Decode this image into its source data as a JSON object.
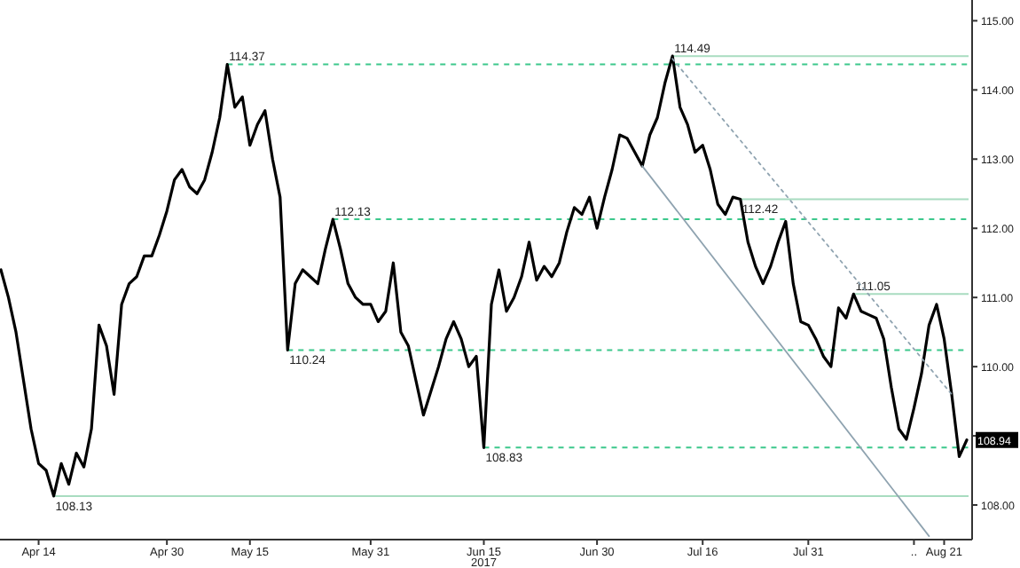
{
  "chart_data": {
    "type": "line",
    "categories": [
      null,
      null,
      null,
      null,
      null,
      "Apr 14",
      null,
      null,
      null,
      null,
      null,
      null,
      null,
      null,
      null,
      null,
      null,
      null,
      null,
      null,
      null,
      null,
      "Apr 30",
      null,
      null,
      null,
      null,
      null,
      null,
      null,
      null,
      null,
      null,
      "May 15",
      null,
      null,
      null,
      null,
      null,
      null,
      null,
      null,
      null,
      null,
      null,
      null,
      null,
      null,
      null,
      "May 31",
      null,
      null,
      null,
      null,
      null,
      null,
      null,
      null,
      null,
      null,
      null,
      null,
      null,
      null,
      "Jun 15",
      null,
      null,
      null,
      null,
      null,
      null,
      null,
      null,
      null,
      null,
      null,
      null,
      null,
      null,
      "Jun 30",
      null,
      null,
      null,
      null,
      null,
      null,
      null,
      null,
      null,
      null,
      null,
      null,
      null,
      "Jul 16",
      null,
      null,
      null,
      null,
      null,
      null,
      null,
      null,
      null,
      null,
      null,
      null,
      null,
      "Jul 31",
      null,
      null,
      null,
      null,
      null,
      null,
      null,
      null,
      null,
      null,
      null,
      null,
      null,
      "..",
      null,
      null,
      null,
      "Aug 21",
      null,
      null,
      null
    ],
    "series": [
      {
        "color": "#000000",
        "line_style": "solid",
        "values": [
          111.4,
          111.0,
          110.5,
          109.8,
          109.1,
          108.6,
          108.5,
          108.13,
          108.6,
          108.3,
          108.75,
          108.55,
          109.1,
          110.6,
          110.3,
          109.6,
          110.9,
          111.2,
          111.3,
          111.6,
          111.6,
          111.9,
          112.25,
          112.7,
          112.85,
          112.6,
          112.5,
          112.7,
          113.1,
          113.6,
          114.37,
          113.75,
          113.9,
          113.2,
          113.5,
          113.7,
          113.0,
          112.45,
          110.24,
          111.2,
          111.4,
          111.3,
          111.2,
          111.7,
          112.13,
          111.7,
          111.2,
          111.0,
          110.9,
          110.9,
          110.65,
          110.8,
          111.5,
          110.5,
          110.3,
          109.8,
          109.3,
          109.65,
          110.0,
          110.4,
          110.65,
          110.4,
          110.0,
          110.15,
          108.83,
          110.9,
          111.4,
          110.8,
          111.0,
          111.3,
          111.8,
          111.25,
          111.45,
          111.3,
          111.5,
          111.95,
          112.3,
          112.2,
          112.45,
          112.0,
          112.45,
          112.85,
          113.35,
          113.3,
          113.1,
          112.9,
          113.35,
          113.6,
          114.1,
          114.49,
          113.75,
          113.5,
          113.1,
          113.2,
          112.85,
          112.35,
          112.2,
          112.45,
          112.42,
          111.8,
          111.45,
          111.2,
          111.45,
          111.8,
          112.1,
          111.2,
          110.65,
          110.6,
          110.4,
          110.15,
          110.0,
          110.85,
          110.7,
          111.05,
          110.8,
          110.75,
          110.7,
          110.4,
          109.7,
          109.1,
          108.95,
          109.4,
          109.9,
          110.6,
          110.9,
          110.4,
          109.6,
          108.7,
          108.94
        ]
      },
      {
        "color": "#8fa3b0",
        "line_style": "solid",
        "values": [
          null,
          null,
          null,
          null,
          null,
          null,
          null,
          null,
          null,
          null,
          null,
          null,
          null,
          null,
          null,
          null,
          null,
          null,
          null,
          null,
          null,
          null,
          null,
          null,
          null,
          null,
          null,
          null,
          null,
          null,
          null,
          null,
          null,
          null,
          null,
          null,
          null,
          null,
          null,
          null,
          null,
          null,
          null,
          null,
          null,
          null,
          null,
          null,
          null,
          null,
          null,
          null,
          null,
          null,
          null,
          null,
          null,
          null,
          null,
          null,
          null,
          null,
          null,
          null,
          null,
          null,
          null,
          null,
          null,
          null,
          null,
          null,
          null,
          null,
          null,
          null,
          null,
          null,
          null,
          null,
          null,
          null,
          null,
          null,
          null,
          112.9,
          null,
          null,
          null,
          null,
          null,
          null,
          null,
          null,
          null,
          null,
          null,
          null,
          null,
          null,
          null,
          null,
          null,
          null,
          null,
          null,
          null,
          null,
          null,
          null,
          null,
          null,
          null,
          null,
          null,
          null,
          null,
          null,
          null,
          null,
          null,
          null,
          null,
          107.55,
          null,
          null,
          null,
          null,
          null
        ]
      },
      {
        "color": "#8fa3b0",
        "line_style": "dotted",
        "values": [
          null,
          null,
          null,
          null,
          null,
          null,
          null,
          null,
          null,
          null,
          null,
          null,
          null,
          null,
          null,
          null,
          null,
          null,
          null,
          null,
          null,
          null,
          null,
          null,
          null,
          null,
          null,
          null,
          null,
          null,
          null,
          null,
          null,
          null,
          null,
          null,
          null,
          null,
          null,
          null,
          null,
          null,
          null,
          null,
          null,
          null,
          null,
          null,
          null,
          null,
          null,
          null,
          null,
          null,
          null,
          null,
          null,
          null,
          null,
          null,
          null,
          null,
          null,
          null,
          null,
          null,
          null,
          null,
          null,
          null,
          null,
          null,
          null,
          null,
          null,
          null,
          null,
          null,
          null,
          null,
          null,
          null,
          null,
          null,
          null,
          null,
          null,
          null,
          null,
          114.45,
          null,
          null,
          null,
          null,
          null,
          null,
          null,
          null,
          null,
          null,
          null,
          null,
          null,
          null,
          null,
          null,
          null,
          null,
          null,
          null,
          null,
          null,
          null,
          null,
          null,
          null,
          null,
          null,
          null,
          null,
          null,
          null,
          null,
          null,
          null,
          null,
          109.6,
          null,
          null
        ]
      }
    ],
    "ylim": [
      107.5,
      115.3
    ],
    "yticks": [
      {
        "value": 108,
        "label": "108.00"
      },
      {
        "value": 109,
        "label": null
      },
      {
        "value": 110,
        "label": "110.00"
      },
      {
        "value": 111,
        "label": "111.00"
      },
      {
        "value": 112,
        "label": "112.00"
      },
      {
        "value": 113,
        "label": "113.00"
      },
      {
        "value": 114,
        "label": "114.00"
      },
      {
        "value": 115,
        "label": "115.00"
      }
    ],
    "ref_lines": [
      {
        "axis": "y",
        "value": 114.37,
        "label": "114.37",
        "color": "#3cc88c",
        "line_style": "dashed"
      },
      {
        "axis": "y",
        "value": 112.13,
        "label": "112.13",
        "color": "#3cc88c",
        "line_style": "dashed"
      },
      {
        "axis": "y",
        "value": 110.24,
        "label": "110.24",
        "color": "#3cc88c",
        "line_style": "dashed"
      },
      {
        "axis": "y",
        "value": 108.83,
        "label": "108.83",
        "color": "#3cc88c",
        "line_style": "dashed"
      },
      {
        "axis": "y",
        "value": 114.49,
        "label": "114.49",
        "color": "#a8dcc0",
        "line_style": "solid"
      },
      {
        "axis": "y",
        "value": 112.42,
        "label": "112.42",
        "color": "#a8dcc0",
        "line_style": "solid"
      },
      {
        "axis": "y",
        "value": 111.05,
        "label": "111.05",
        "color": "#a8dcc0",
        "line_style": "solid"
      },
      {
        "axis": "y",
        "value": 108.13,
        "label": "108.13",
        "color": "#a8dcc0",
        "line_style": "solid"
      }
    ],
    "annotations": [
      "2017",
      {
        "text": "108.94",
        "y": 108.94
      }
    ],
    "grid": false
  }
}
